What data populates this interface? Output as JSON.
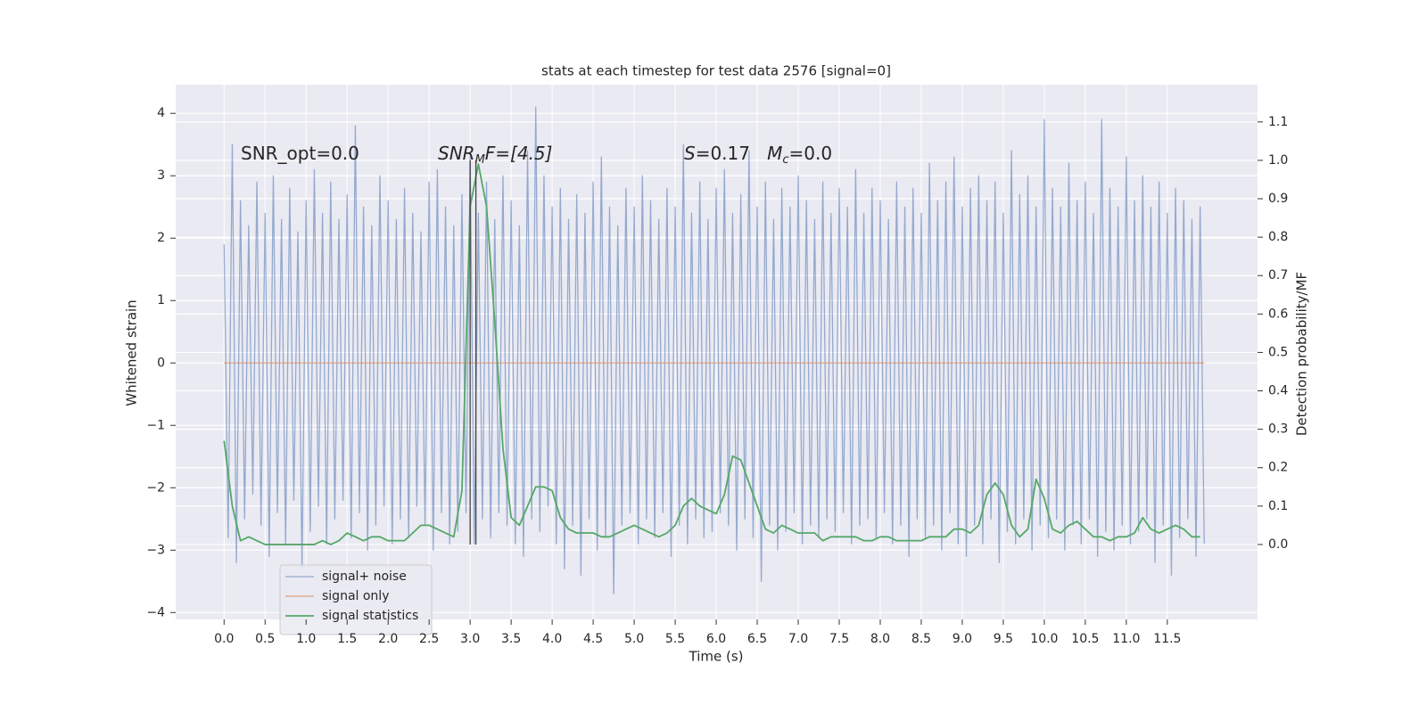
{
  "chart_data": {
    "type": "line",
    "title": "stats at each timestep for test data 2576 [signal=0]",
    "xlabel": "Time (s)",
    "ylabel": "Whitened strain",
    "y2label": "Detection probability/MF",
    "xlim": [
      -0.59,
      12.6
    ],
    "ylim": [
      -4.11,
      4.46
    ],
    "y2lim": [
      -0.195,
      1.197
    ],
    "grid": true,
    "legend": "lower left",
    "xticks": [
      {
        "value": 0,
        "label": "0.0"
      },
      {
        "value": 0.5,
        "label": "0.5"
      },
      {
        "value": 1,
        "label": "1.0"
      },
      {
        "value": 1.5,
        "label": "1.5"
      },
      {
        "value": 2,
        "label": "2.0"
      },
      {
        "value": 2.5,
        "label": "2.5"
      },
      {
        "value": 3,
        "label": "3.0"
      },
      {
        "value": 3.5,
        "label": "3.5"
      },
      {
        "value": 4,
        "label": "4.0"
      },
      {
        "value": 4.5,
        "label": "4.5"
      },
      {
        "value": 5,
        "label": "5.0"
      },
      {
        "value": 5.5,
        "label": "5.5"
      },
      {
        "value": 6,
        "label": "6.0"
      },
      {
        "value": 6.5,
        "label": "6.5"
      },
      {
        "value": 7,
        "label": "7.0"
      },
      {
        "value": 7.5,
        "label": "7.5"
      },
      {
        "value": 8,
        "label": "8.0"
      },
      {
        "value": 8.5,
        "label": "8.5"
      },
      {
        "value": 9,
        "label": "9.0"
      },
      {
        "value": 9.5,
        "label": "9.5"
      },
      {
        "value": 10,
        "label": "10.0"
      },
      {
        "value": 10.5,
        "label": "10.5"
      },
      {
        "value": 11,
        "label": "11.0"
      },
      {
        "value": 11.5,
        "label": "11.5"
      }
    ],
    "yticks": [
      {
        "value": -4,
        "label": "−4"
      },
      {
        "value": -3,
        "label": "−3"
      },
      {
        "value": -2,
        "label": "−2"
      },
      {
        "value": -1,
        "label": "−1"
      },
      0,
      1,
      2,
      3,
      4
    ],
    "y2ticks": [
      {
        "value": 0,
        "label": "0.0"
      },
      {
        "value": 0.1,
        "label": "0.1"
      },
      {
        "value": 0.2,
        "label": "0.2"
      },
      {
        "value": 0.3,
        "label": "0.3"
      },
      {
        "value": 0.4,
        "label": "0.4"
      },
      {
        "value": 0.5,
        "label": "0.5"
      },
      {
        "value": 0.6,
        "label": "0.6"
      },
      {
        "value": 0.7,
        "label": "0.7"
      },
      {
        "value": 0.8,
        "label": "0.8"
      },
      {
        "value": 0.9,
        "label": "0.9"
      },
      {
        "value": 1,
        "label": "1.0"
      },
      {
        "value": 1.1,
        "label": "1.1"
      }
    ],
    "series": [
      {
        "name": "signal+ noise",
        "color": "#4c72b0",
        "x": [
          0,
          0.05,
          0.1,
          0.15,
          0.2,
          0.25,
          0.3,
          0.35,
          0.4,
          0.45,
          0.5,
          0.55,
          0.6,
          0.65,
          0.7,
          0.75,
          0.8,
          0.85,
          0.9,
          0.95,
          1,
          1.05,
          1.1,
          1.15,
          1.2,
          1.25,
          1.3,
          1.35,
          1.4,
          1.45,
          1.5,
          1.55,
          1.6,
          1.65,
          1.7,
          1.75,
          1.8,
          1.85,
          1.9,
          1.95,
          2,
          2.05,
          2.1,
          2.15,
          2.2,
          2.25,
          2.3,
          2.35,
          2.4,
          2.45,
          2.5,
          2.55,
          2.6,
          2.65,
          2.7,
          2.75,
          2.8,
          2.85,
          2.9,
          2.95,
          3,
          3.05,
          3.1,
          3.15,
          3.2,
          3.25,
          3.3,
          3.35,
          3.4,
          3.45,
          3.5,
          3.55,
          3.6,
          3.65,
          3.7,
          3.75,
          3.8,
          3.85,
          3.9,
          3.95,
          4,
          4.05,
          4.1,
          4.15,
          4.2,
          4.25,
          4.3,
          4.35,
          4.4,
          4.45,
          4.5,
          4.55,
          4.6,
          4.65,
          4.7,
          4.75,
          4.8,
          4.85,
          4.9,
          4.95,
          5,
          5.05,
          5.1,
          5.15,
          5.2,
          5.25,
          5.3,
          5.35,
          5.4,
          5.45,
          5.5,
          5.55,
          5.6,
          5.65,
          5.7,
          5.75,
          5.8,
          5.85,
          5.9,
          5.95,
          6,
          6.05,
          6.1,
          6.15,
          6.2,
          6.25,
          6.3,
          6.35,
          6.4,
          6.45,
          6.5,
          6.55,
          6.6,
          6.65,
          6.7,
          6.75,
          6.8,
          6.85,
          6.9,
          6.95,
          7,
          7.05,
          7.1,
          7.15,
          7.2,
          7.25,
          7.3,
          7.35,
          7.4,
          7.45,
          7.5,
          7.55,
          7.6,
          7.65,
          7.7,
          7.75,
          7.8,
          7.85,
          7.9,
          7.95,
          8,
          8.05,
          8.1,
          8.15,
          8.2,
          8.25,
          8.3,
          8.35,
          8.4,
          8.45,
          8.5,
          8.55,
          8.6,
          8.65,
          8.7,
          8.75,
          8.8,
          8.85,
          8.9,
          8.95,
          9,
          9.05,
          9.1,
          9.15,
          9.2,
          9.25,
          9.3,
          9.35,
          9.4,
          9.45,
          9.5,
          9.55,
          9.6,
          9.65,
          9.7,
          9.75,
          9.8,
          9.85,
          9.9,
          9.95,
          10,
          10.05,
          10.1,
          10.15,
          10.2,
          10.25,
          10.3,
          10.35,
          10.4,
          10.45,
          10.5,
          10.55,
          10.6,
          10.65,
          10.7,
          10.75,
          10.8,
          10.85,
          10.9,
          10.95,
          11,
          11.05,
          11.1,
          11.15,
          11.2,
          11.25,
          11.3,
          11.35,
          11.4,
          11.45,
          11.5,
          11.55,
          11.6,
          11.65,
          11.7,
          11.75,
          11.8,
          11.85,
          11.9,
          11.95
        ],
        "values": [
          1.9,
          -2.8,
          3.5,
          -3.2,
          2.6,
          -2.5,
          2.2,
          -2.1,
          2.9,
          -2.6,
          2.4,
          -3.1,
          3.0,
          -2.4,
          2.3,
          -2.9,
          2.8,
          -2.2,
          2.1,
          -3.3,
          2.6,
          -2.7,
          3.1,
          -2.3,
          2.4,
          -2.9,
          2.9,
          -2.5,
          2.3,
          -2.2,
          2.7,
          -2.8,
          3.8,
          -2.4,
          2.5,
          -3.0,
          2.2,
          -2.6,
          3.0,
          -2.3,
          2.6,
          -2.9,
          2.3,
          -2.5,
          2.8,
          -2.8,
          2.4,
          -2.3,
          2.1,
          -2.6,
          2.9,
          -3.0,
          3.1,
          -2.4,
          2.5,
          -2.9,
          2.2,
          -2.7,
          2.7,
          -2.4,
          3.3,
          -2.9,
          2.4,
          -2.5,
          2.9,
          -2.8,
          2.3,
          -2.4,
          3.0,
          -2.6,
          2.6,
          -2.9,
          2.2,
          -3.1,
          3.4,
          -2.5,
          4.1,
          -2.7,
          3.0,
          -2.3,
          2.5,
          -2.9,
          2.8,
          -3.3,
          2.3,
          -2.6,
          2.7,
          -3.4,
          2.4,
          -2.5,
          2.9,
          -3.0,
          3.3,
          -2.8,
          2.5,
          -3.7,
          2.2,
          -2.6,
          2.8,
          -2.4,
          2.5,
          -2.9,
          3.0,
          -2.5,
          2.6,
          -2.8,
          2.3,
          -2.4,
          2.8,
          -3.1,
          2.5,
          -2.6,
          3.5,
          -2.9,
          2.4,
          -2.5,
          2.9,
          -2.8,
          2.3,
          -2.7,
          2.8,
          -2.4,
          3.1,
          -2.6,
          2.4,
          -3.0,
          2.7,
          -2.5,
          3.4,
          -2.8,
          2.5,
          -3.5,
          2.9,
          -2.6,
          2.3,
          -3.0,
          2.8,
          -2.7,
          2.5,
          -2.4,
          3.0,
          -2.9,
          2.6,
          -2.6,
          2.3,
          -2.8,
          2.9,
          -2.5,
          2.4,
          -2.7,
          2.8,
          -2.4,
          2.5,
          -2.9,
          3.1,
          -2.6,
          2.4,
          -2.5,
          2.8,
          -2.8,
          2.6,
          -2.4,
          2.3,
          -2.9,
          2.9,
          -2.6,
          2.5,
          -3.1,
          2.8,
          -2.5,
          2.4,
          -2.8,
          3.2,
          -2.6,
          2.6,
          -3.0,
          2.9,
          -2.4,
          3.3,
          -2.9,
          2.5,
          -3.1,
          2.8,
          -2.6,
          3.0,
          -2.9,
          2.6,
          -2.5,
          2.9,
          -3.2,
          2.4,
          -2.7,
          3.4,
          -2.9,
          2.7,
          -2.5,
          3.0,
          -3.0,
          2.5,
          -2.6,
          3.9,
          -2.8,
          2.8,
          -2.5,
          2.5,
          -3.0,
          3.2,
          -2.6,
          2.6,
          -2.9,
          2.9,
          -2.5,
          2.4,
          -3.1,
          3.9,
          -2.7,
          2.8,
          -3.0,
          2.5,
          -2.6,
          3.3,
          -2.9,
          2.6,
          -2.7,
          3.0,
          -2.5,
          2.5,
          -3.2,
          2.9,
          -2.6,
          2.4,
          -3.4,
          2.8,
          -2.8,
          2.6,
          -2.5,
          2.3,
          -3.1,
          2.5,
          -2.9
        ]
      },
      {
        "name": "signal only",
        "color": "#dd8452",
        "x": [
          0,
          11.95
        ],
        "values": [
          0,
          0
        ]
      },
      {
        "name": "signal statistics",
        "color": "#55a868",
        "axis": "y2",
        "x": [
          0,
          0.1,
          0.2,
          0.3,
          0.4,
          0.5,
          0.6,
          0.7,
          0.8,
          0.9,
          1,
          1.1,
          1.2,
          1.3,
          1.4,
          1.5,
          1.6,
          1.7,
          1.8,
          1.9,
          2,
          2.1,
          2.2,
          2.3,
          2.4,
          2.5,
          2.6,
          2.7,
          2.8,
          2.9,
          3,
          3.1,
          3.2,
          3.3,
          3.4,
          3.5,
          3.6,
          3.7,
          3.8,
          3.9,
          4,
          4.1,
          4.2,
          4.3,
          4.4,
          4.5,
          4.6,
          4.7,
          4.8,
          4.9,
          5,
          5.1,
          5.2,
          5.3,
          5.4,
          5.5,
          5.6,
          5.7,
          5.8,
          5.9,
          6,
          6.1,
          6.2,
          6.3,
          6.4,
          6.5,
          6.6,
          6.7,
          6.8,
          6.9,
          7,
          7.1,
          7.2,
          7.3,
          7.4,
          7.5,
          7.6,
          7.7,
          7.8,
          7.9,
          8,
          8.1,
          8.2,
          8.3,
          8.4,
          8.5,
          8.6,
          8.7,
          8.8,
          8.9,
          9,
          9.1,
          9.2,
          9.3,
          9.4,
          9.5,
          9.6,
          9.7,
          9.8,
          9.9,
          10,
          10.1,
          10.2,
          10.3,
          10.4,
          10.5,
          10.6,
          10.7,
          10.8,
          10.9,
          11,
          11.1,
          11.2,
          11.3,
          11.4,
          11.5,
          11.6,
          11.7,
          11.8,
          11.9
        ],
        "values": [
          0.27,
          0.1,
          0.01,
          0.02,
          0.01,
          0,
          0,
          0,
          0,
          0,
          0,
          0,
          0.01,
          0,
          0.01,
          0.03,
          0.02,
          0.01,
          0.02,
          0.02,
          0.01,
          0.01,
          0.01,
          0.03,
          0.05,
          0.05,
          0.04,
          0.03,
          0.02,
          0.14,
          0.88,
          0.99,
          0.88,
          0.58,
          0.25,
          0.07,
          0.05,
          0.1,
          0.15,
          0.15,
          0.14,
          0.07,
          0.04,
          0.03,
          0.03,
          0.03,
          0.02,
          0.02,
          0.03,
          0.04,
          0.05,
          0.04,
          0.03,
          0.02,
          0.03,
          0.05,
          0.1,
          0.12,
          0.1,
          0.09,
          0.08,
          0.13,
          0.23,
          0.22,
          0.16,
          0.1,
          0.04,
          0.03,
          0.05,
          0.04,
          0.03,
          0.03,
          0.03,
          0.01,
          0.02,
          0.02,
          0.02,
          0.02,
          0.01,
          0.01,
          0.02,
          0.02,
          0.01,
          0.01,
          0.01,
          0.01,
          0.02,
          0.02,
          0.02,
          0.04,
          0.04,
          0.03,
          0.05,
          0.13,
          0.16,
          0.13,
          0.05,
          0.02,
          0.04,
          0.17,
          0.12,
          0.04,
          0.03,
          0.05,
          0.06,
          0.04,
          0.02,
          0.02,
          0.01,
          0.02,
          0.02,
          0.03,
          0.07,
          0.04,
          0.03,
          0.04,
          0.05,
          0.04,
          0.02,
          0.02
        ]
      }
    ],
    "vlines": {
      "x": [
        3.0,
        3.07
      ],
      "y2": [
        0,
        1.0
      ],
      "color": "#444444"
    },
    "annotations": [
      {
        "parts": [
          "SNR_opt=0.0"
        ]
      },
      {
        "parts": [
          "SNR",
          "M",
          "F=[4.5]"
        ]
      },
      {
        "parts": [
          "S",
          "=0.17   ",
          "M",
          "c",
          "=0.0"
        ]
      }
    ]
  }
}
